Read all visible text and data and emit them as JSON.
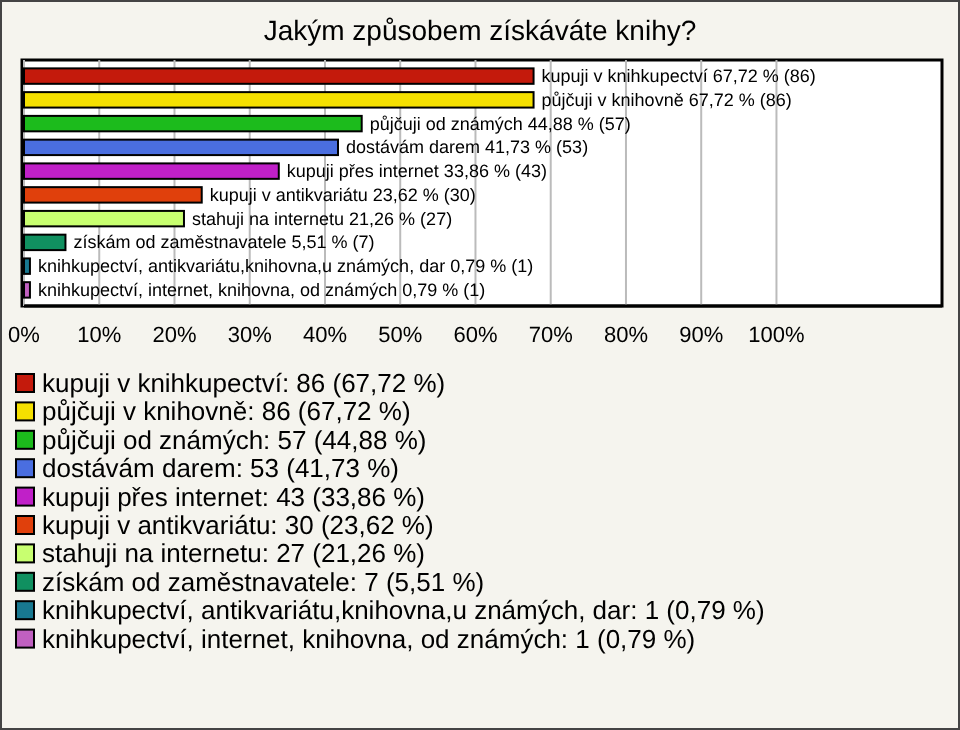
{
  "chart_data": {
    "type": "bar",
    "orientation": "horizontal",
    "stacked": true,
    "title": "Jakým způsobem získáváte knihy?",
    "categories": [
      null,
      null,
      null,
      null,
      null,
      null,
      null,
      null,
      null,
      null
    ],
    "series": [
      {
        "name": "kupuji v knihkupectví: 86 (67,72 %)",
        "color": "#c41a0c",
        "values": [
          67.72,
          null,
          null,
          null,
          null,
          null,
          null,
          null,
          null,
          null
        ],
        "value_labels": [
          "kupuji v knihkupectví 67,72 % (86)",
          null,
          null,
          null,
          null,
          null,
          null,
          null,
          null,
          null
        ]
      },
      {
        "name": "půjčuji v knihovně: 86 (67,72 %)",
        "color": "#f5e000",
        "values": [
          null,
          67.72,
          null,
          null,
          null,
          null,
          null,
          null,
          null,
          null
        ],
        "value_labels": [
          null,
          "půjčuji v knihovně 67,72 % (86)",
          null,
          null,
          null,
          null,
          null,
          null,
          null,
          null
        ]
      },
      {
        "name": "půjčuji od známých: 57 (44,88 %)",
        "color": "#1cbb1c",
        "values": [
          null,
          null,
          44.88,
          null,
          null,
          null,
          null,
          null,
          null,
          null
        ],
        "value_labels": [
          null,
          null,
          "půjčuji od známých 44,88 % (57)",
          null,
          null,
          null,
          null,
          null,
          null,
          null
        ]
      },
      {
        "name": "dostávám darem: 53 (41,73 %)",
        "color": "#4a6ee0",
        "values": [
          null,
          null,
          null,
          41.73,
          null,
          null,
          null,
          null,
          null,
          null
        ],
        "value_labels": [
          null,
          null,
          null,
          "dostávám darem 41,73 % (53)",
          null,
          null,
          null,
          null,
          null,
          null
        ]
      },
      {
        "name": "kupuji přes internet: 43 (33,86 %)",
        "color": "#c020c8",
        "values": [
          null,
          null,
          null,
          null,
          33.86,
          null,
          null,
          null,
          null,
          null
        ],
        "value_labels": [
          null,
          null,
          null,
          null,
          "kupuji přes internet 33,86 % (43)",
          null,
          null,
          null,
          null,
          null
        ]
      },
      {
        "name": "kupuji v antikvariátu: 30 (23,62 %)",
        "color": "#e0400c",
        "values": [
          null,
          null,
          null,
          null,
          null,
          23.62,
          null,
          null,
          null,
          null
        ],
        "value_labels": [
          null,
          null,
          null,
          null,
          null,
          "kupuji v antikvariátu 23,62 % (30)",
          null,
          null,
          null,
          null
        ]
      },
      {
        "name": "stahuji na internetu: 27 (21,26 %)",
        "color": "#c8ff70",
        "values": [
          null,
          null,
          null,
          null,
          null,
          null,
          21.26,
          null,
          null,
          null
        ],
        "value_labels": [
          null,
          null,
          null,
          null,
          null,
          null,
          "stahuji na internetu 21,26 % (27)",
          null,
          null,
          null
        ]
      },
      {
        "name": "získám od zaměstnavatele: 7 (5,51 %)",
        "color": "#109060",
        "values": [
          null,
          null,
          null,
          null,
          null,
          null,
          null,
          5.51,
          null,
          null
        ],
        "value_labels": [
          null,
          null,
          null,
          null,
          null,
          null,
          null,
          "získám od zaměstnavatele 5,51 % (7)",
          null,
          null
        ]
      },
      {
        "name": "knihkupectví, antikvariátu,knihovna,u známých, dar: 1 (0,79 %)",
        "color": "#187890",
        "values": [
          null,
          null,
          null,
          null,
          null,
          null,
          null,
          null,
          0.79,
          null
        ],
        "value_labels": [
          null,
          null,
          null,
          null,
          null,
          null,
          null,
          null,
          "knihkupectví, antikvariátu,knihovna,u známých, dar 0,79 % (1)",
          null
        ]
      },
      {
        "name": "knihkupectví, internet, knihovna, od známých: 1 (0,79 %)",
        "color": "#c060c0",
        "values": [
          null,
          null,
          null,
          null,
          null,
          null,
          null,
          null,
          null,
          0.79
        ],
        "value_labels": [
          null,
          null,
          null,
          null,
          null,
          null,
          null,
          null,
          null,
          "knihkupectví, internet, knihovna, od známých 0,79 % (1)"
        ]
      }
    ],
    "xlim": [
      0,
      122
    ],
    "xticks": [
      {
        "value": 0,
        "label": "0%"
      },
      {
        "value": 10,
        "label": "10%"
      },
      {
        "value": 20,
        "label": "20%"
      },
      {
        "value": 30,
        "label": "30%"
      },
      {
        "value": 40,
        "label": "40%"
      },
      {
        "value": 50,
        "label": "50%"
      },
      {
        "value": 60,
        "label": "60%"
      },
      {
        "value": 70,
        "label": "70%"
      },
      {
        "value": 80,
        "label": "80%"
      },
      {
        "value": 90,
        "label": "90%"
      },
      {
        "value": 100,
        "label": "100%"
      }
    ],
    "grid": "x",
    "legend": "bottom",
    "tick_labels": "x"
  }
}
